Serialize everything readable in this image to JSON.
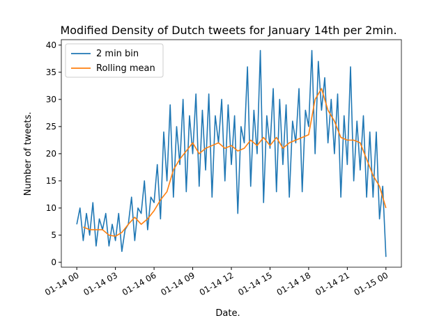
{
  "chart_data": {
    "type": "line",
    "title": "Modified Density of Dutch tweets for January 14th per 2min.",
    "xlabel": "Date.",
    "ylabel": "Number of tweets.",
    "xlim": [
      -1.2,
      25.2
    ],
    "ylim": [
      -0.9,
      41
    ],
    "xticks": [
      {
        "value": 0,
        "label": "01-14 00"
      },
      {
        "value": 3,
        "label": "01-14 03"
      },
      {
        "value": 6,
        "label": "01-14 06"
      },
      {
        "value": 9,
        "label": "01-14 09"
      },
      {
        "value": 12,
        "label": "01-14 12"
      },
      {
        "value": 15,
        "label": "01-14 15"
      },
      {
        "value": 18,
        "label": "01-14 18"
      },
      {
        "value": 21,
        "label": "01-14 21"
      },
      {
        "value": 24,
        "label": "01-15 00"
      }
    ],
    "yticks": [
      0,
      5,
      10,
      15,
      20,
      25,
      30,
      35,
      40
    ],
    "legend": "upper left",
    "series": [
      {
        "name": "2 min bin",
        "color": "#1f77b4",
        "x": [
          0,
          0.25,
          0.5,
          0.75,
          1,
          1.25,
          1.5,
          1.75,
          2,
          2.25,
          2.5,
          2.75,
          3,
          3.25,
          3.5,
          3.75,
          4,
          4.25,
          4.5,
          4.75,
          5,
          5.25,
          5.5,
          5.75,
          6,
          6.25,
          6.5,
          6.75,
          7,
          7.25,
          7.5,
          7.75,
          8,
          8.25,
          8.5,
          8.75,
          9,
          9.25,
          9.5,
          9.75,
          10,
          10.25,
          10.5,
          10.75,
          11,
          11.25,
          11.5,
          11.75,
          12,
          12.25,
          12.5,
          12.75,
          13,
          13.25,
          13.5,
          13.75,
          14,
          14.25,
          14.5,
          14.75,
          15,
          15.25,
          15.5,
          15.75,
          16,
          16.25,
          16.5,
          16.75,
          17,
          17.25,
          17.5,
          17.75,
          18,
          18.25,
          18.5,
          18.75,
          19,
          19.25,
          19.5,
          19.75,
          20,
          20.25,
          20.5,
          20.75,
          21,
          21.25,
          21.5,
          21.75,
          22,
          22.25,
          22.5,
          22.75,
          23,
          23.25,
          23.5,
          23.75,
          24
        ],
        "values": [
          7,
          10,
          4,
          9,
          5,
          11,
          3,
          8,
          6,
          9,
          3,
          7,
          4,
          9,
          2,
          6,
          7,
          12,
          4,
          10,
          9,
          15,
          6,
          12,
          11,
          18,
          8,
          24,
          15,
          29,
          12,
          25,
          18,
          30,
          13,
          27,
          20,
          31,
          14,
          28,
          17,
          31,
          12,
          27,
          22,
          30,
          15,
          29,
          18,
          27,
          9,
          25,
          22,
          36,
          14,
          28,
          20,
          39,
          11,
          27,
          21,
          32,
          13,
          30,
          18,
          29,
          12,
          26,
          22,
          32,
          13,
          28,
          25,
          39,
          20,
          37,
          28,
          34,
          22,
          30,
          20,
          31,
          12,
          27,
          18,
          36,
          15,
          26,
          17,
          27,
          12,
          24,
          12,
          24,
          8,
          14,
          1
        ]
      },
      {
        "name": "Rolling mean",
        "color": "#ff7f0e",
        "x": [
          0.5,
          1,
          1.5,
          2,
          2.5,
          3,
          3.5,
          4,
          4.5,
          5,
          5.5,
          6,
          6.5,
          7,
          7.5,
          8,
          8.5,
          9,
          9.5,
          10,
          10.5,
          11,
          11.5,
          12,
          12.5,
          13,
          13.5,
          14,
          14.5,
          15,
          15.5,
          16,
          16.5,
          17,
          17.5,
          18,
          18.5,
          19,
          19.5,
          20,
          20.5,
          21,
          21.5,
          22,
          22.5,
          23,
          23.5,
          24
        ],
        "values": [
          6.5,
          6,
          6,
          6,
          5,
          4.8,
          5.5,
          7,
          8.3,
          7,
          8,
          9.5,
          11.5,
          13,
          17,
          19,
          20.5,
          22,
          20,
          21,
          21.5,
          22,
          21,
          21.5,
          20.5,
          21,
          22.5,
          21.5,
          23,
          21.5,
          23,
          21,
          22,
          22.5,
          23,
          23.5,
          30,
          32,
          28,
          26,
          23,
          22.5,
          22.5,
          22,
          19,
          16,
          14,
          10
        ]
      }
    ]
  }
}
